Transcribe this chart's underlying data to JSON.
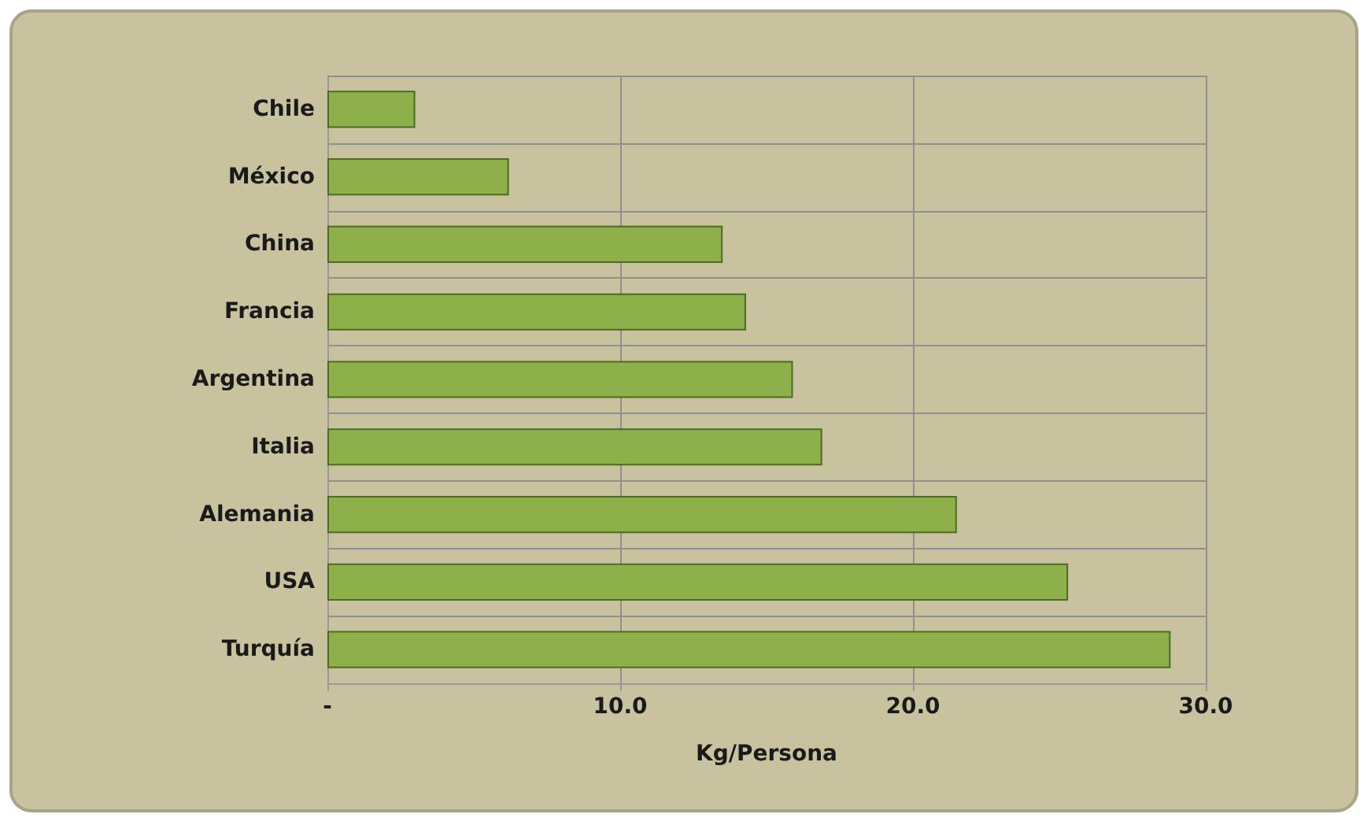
{
  "chart_data": {
    "type": "bar",
    "orientation": "horizontal",
    "xlabel": "Kg/Persona",
    "categories": [
      "Chile",
      "México",
      "China",
      "Francia",
      "Argentina",
      "Italia",
      "Alemania",
      "USA",
      "Turquía"
    ],
    "values": [
      3.0,
      6.2,
      13.5,
      14.3,
      15.9,
      16.9,
      21.5,
      25.3,
      28.8
    ],
    "color": "#8db04a",
    "xlim": [
      0,
      30
    ],
    "xticks": [
      {
        "value": 0,
        "label": "-"
      },
      {
        "value": 10,
        "label": "10.0"
      },
      {
        "value": 20,
        "label": "20.0"
      },
      {
        "value": 30,
        "label": "30.0"
      }
    ],
    "grid": true
  }
}
